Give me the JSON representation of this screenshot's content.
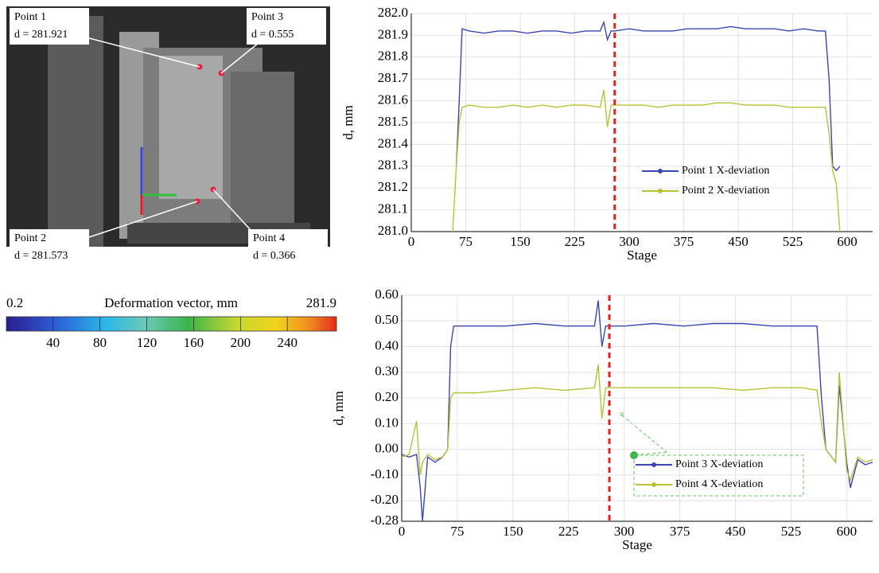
{
  "photo": {
    "points": [
      {
        "label": "Point 1",
        "deformation": "d = 281.921"
      },
      {
        "label": "Point 3",
        "deformation": "d = 0.555"
      },
      {
        "label": "Point 2",
        "deformation": "d = 281.573"
      },
      {
        "label": "Point 4",
        "deformation": "d = 0.366"
      }
    ]
  },
  "colorbar": {
    "title": "Deformation vector, mm",
    "lim": [
      0.2,
      281.9
    ],
    "ticks": [
      40,
      80,
      120,
      160,
      200,
      240
    ]
  },
  "chart_data": [
    {
      "type": "line",
      "x_label": "Stage",
      "y_label": "d, mm",
      "xlim": [
        0,
        635
      ],
      "xticks": [
        0,
        75,
        150,
        225,
        300,
        375,
        450,
        525,
        600
      ],
      "ylim": [
        281.0,
        282.0
      ],
      "yticks": [
        {
          "value": 281.0,
          "label": "281.0"
        },
        281.1,
        281.2,
        281.3,
        281.4,
        281.5,
        281.6,
        281.7,
        281.8,
        281.9,
        {
          "value": 282.0,
          "label": "282.0"
        }
      ],
      "grid": true,
      "vline": 280,
      "vline_color": "#e8201c",
      "x": [
        57,
        62,
        66,
        70,
        80,
        100,
        120,
        140,
        160,
        180,
        200,
        220,
        240,
        260,
        265,
        270,
        275,
        280,
        300,
        320,
        340,
        360,
        380,
        400,
        420,
        440,
        460,
        480,
        500,
        520,
        540,
        560,
        570,
        575,
        580,
        585,
        590
      ],
      "series": [
        {
          "name": "Point 1 X-deviation",
          "color": "#3a47b0",
          "values": [
            null,
            281.3,
            281.6,
            281.93,
            281.92,
            281.91,
            281.92,
            281.92,
            281.91,
            281.92,
            281.92,
            281.91,
            281.92,
            281.92,
            281.96,
            281.88,
            281.92,
            281.92,
            281.93,
            281.92,
            281.92,
            281.92,
            281.93,
            281.93,
            281.93,
            281.94,
            281.93,
            281.93,
            281.93,
            281.92,
            281.93,
            281.92,
            281.92,
            281.7,
            281.3,
            281.28,
            281.3
          ]
        },
        {
          "name": "Point 2 X-deviation",
          "color": "#b8c234",
          "values": [
            281.0,
            281.3,
            281.5,
            281.57,
            281.58,
            281.57,
            281.57,
            281.58,
            281.57,
            281.58,
            281.57,
            281.58,
            281.58,
            281.57,
            281.65,
            281.48,
            281.58,
            281.58,
            281.58,
            281.58,
            281.57,
            281.58,
            281.58,
            281.58,
            281.59,
            281.59,
            281.58,
            281.58,
            281.58,
            281.57,
            281.57,
            281.57,
            281.57,
            281.45,
            281.28,
            281.22,
            281.0
          ]
        }
      ]
    },
    {
      "type": "line",
      "x_label": "Stage",
      "y_label": "d, mm",
      "xlim": [
        0,
        635
      ],
      "xticks": [
        0,
        75,
        150,
        225,
        300,
        375,
        450,
        525,
        600
      ],
      "ylim": [
        -0.28,
        0.6
      ],
      "yticks": [
        {
          "value": 0.6,
          "label": "0.60"
        },
        {
          "value": 0.5,
          "label": "0.50"
        },
        {
          "value": 0.4,
          "label": "0.40"
        },
        {
          "value": 0.3,
          "label": "0.30"
        },
        {
          "value": 0.2,
          "label": "0.20"
        },
        {
          "value": 0.1,
          "label": "0.10"
        },
        {
          "value": 0,
          "label": "0.00"
        },
        {
          "value": -0.1,
          "label": "-0.10"
        },
        {
          "value": -0.2,
          "label": "-0.20"
        },
        -0.28
      ],
      "grid": true,
      "vline": 280,
      "vline_color": "#e8201c",
      "x": [
        0,
        10,
        20,
        25,
        28,
        35,
        45,
        55,
        62,
        66,
        70,
        100,
        140,
        180,
        220,
        260,
        265,
        270,
        275,
        300,
        340,
        380,
        420,
        460,
        500,
        540,
        560,
        566,
        572,
        585,
        590,
        600,
        605,
        615,
        625,
        635
      ],
      "series": [
        {
          "name": "Point 3 X-deviation",
          "color": "#3a47b0",
          "values": [
            -0.02,
            -0.03,
            -0.02,
            -0.15,
            -0.28,
            -0.03,
            -0.05,
            -0.03,
            0.0,
            0.4,
            0.48,
            0.48,
            0.48,
            0.49,
            0.48,
            0.48,
            0.58,
            0.4,
            0.48,
            0.48,
            0.49,
            0.48,
            0.49,
            0.49,
            0.48,
            0.48,
            0.48,
            0.2,
            0.0,
            -0.05,
            0.25,
            -0.05,
            -0.15,
            -0.04,
            -0.06,
            -0.05
          ]
        },
        {
          "name": "Point 4 X-deviation",
          "color": "#b8c234",
          "values": [
            -0.03,
            -0.02,
            0.11,
            -0.1,
            -0.05,
            -0.02,
            -0.04,
            -0.03,
            0.0,
            0.2,
            0.22,
            0.22,
            0.23,
            0.24,
            0.23,
            0.24,
            0.33,
            0.12,
            0.24,
            0.24,
            0.24,
            0.24,
            0.24,
            0.23,
            0.24,
            0.24,
            0.23,
            0.1,
            0.0,
            -0.05,
            0.3,
            -0.08,
            -0.12,
            -0.03,
            -0.05,
            -0.04
          ]
        }
      ]
    }
  ]
}
